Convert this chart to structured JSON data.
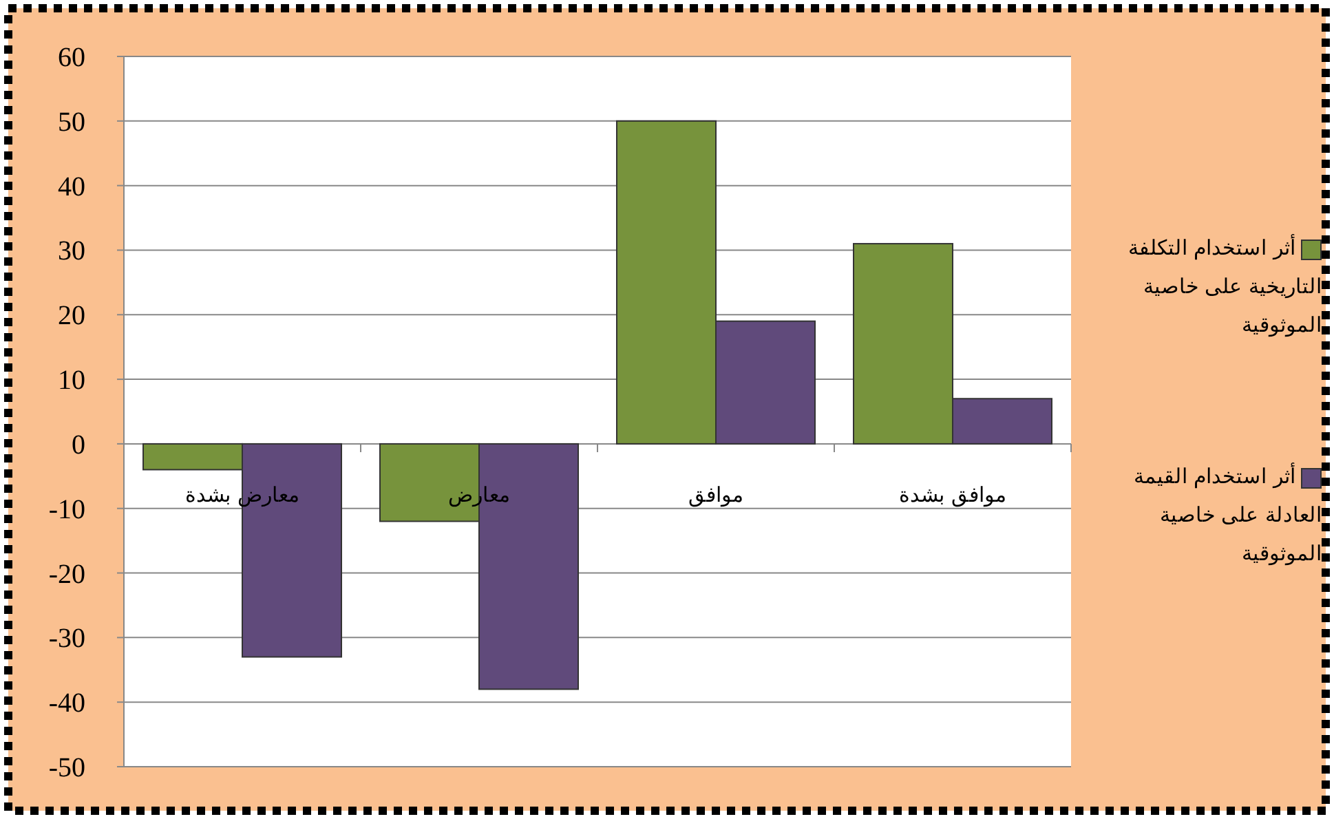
{
  "chart_data": {
    "type": "bar",
    "categories": [
      "معارض بشدة",
      "معارض",
      "موافق",
      "موافق بشدة"
    ],
    "series": [
      {
        "name": "أثر استخدام التكلفة التاريخية على خاصية الموثوقية",
        "color": "#77933c",
        "values": [
          -4,
          -12,
          50,
          31
        ]
      },
      {
        "name": "أثر استخدام القيمة العادلة على خاصية الموثوقية",
        "color": "#604a7b",
        "values": [
          -33,
          -38,
          19,
          7
        ]
      }
    ],
    "ylim": [
      -50,
      60
    ],
    "yticks": [
      -50,
      -40,
      -30,
      -20,
      -10,
      0,
      10,
      20,
      30,
      40,
      50,
      60
    ],
    "grid": "y",
    "legend": "right"
  }
}
